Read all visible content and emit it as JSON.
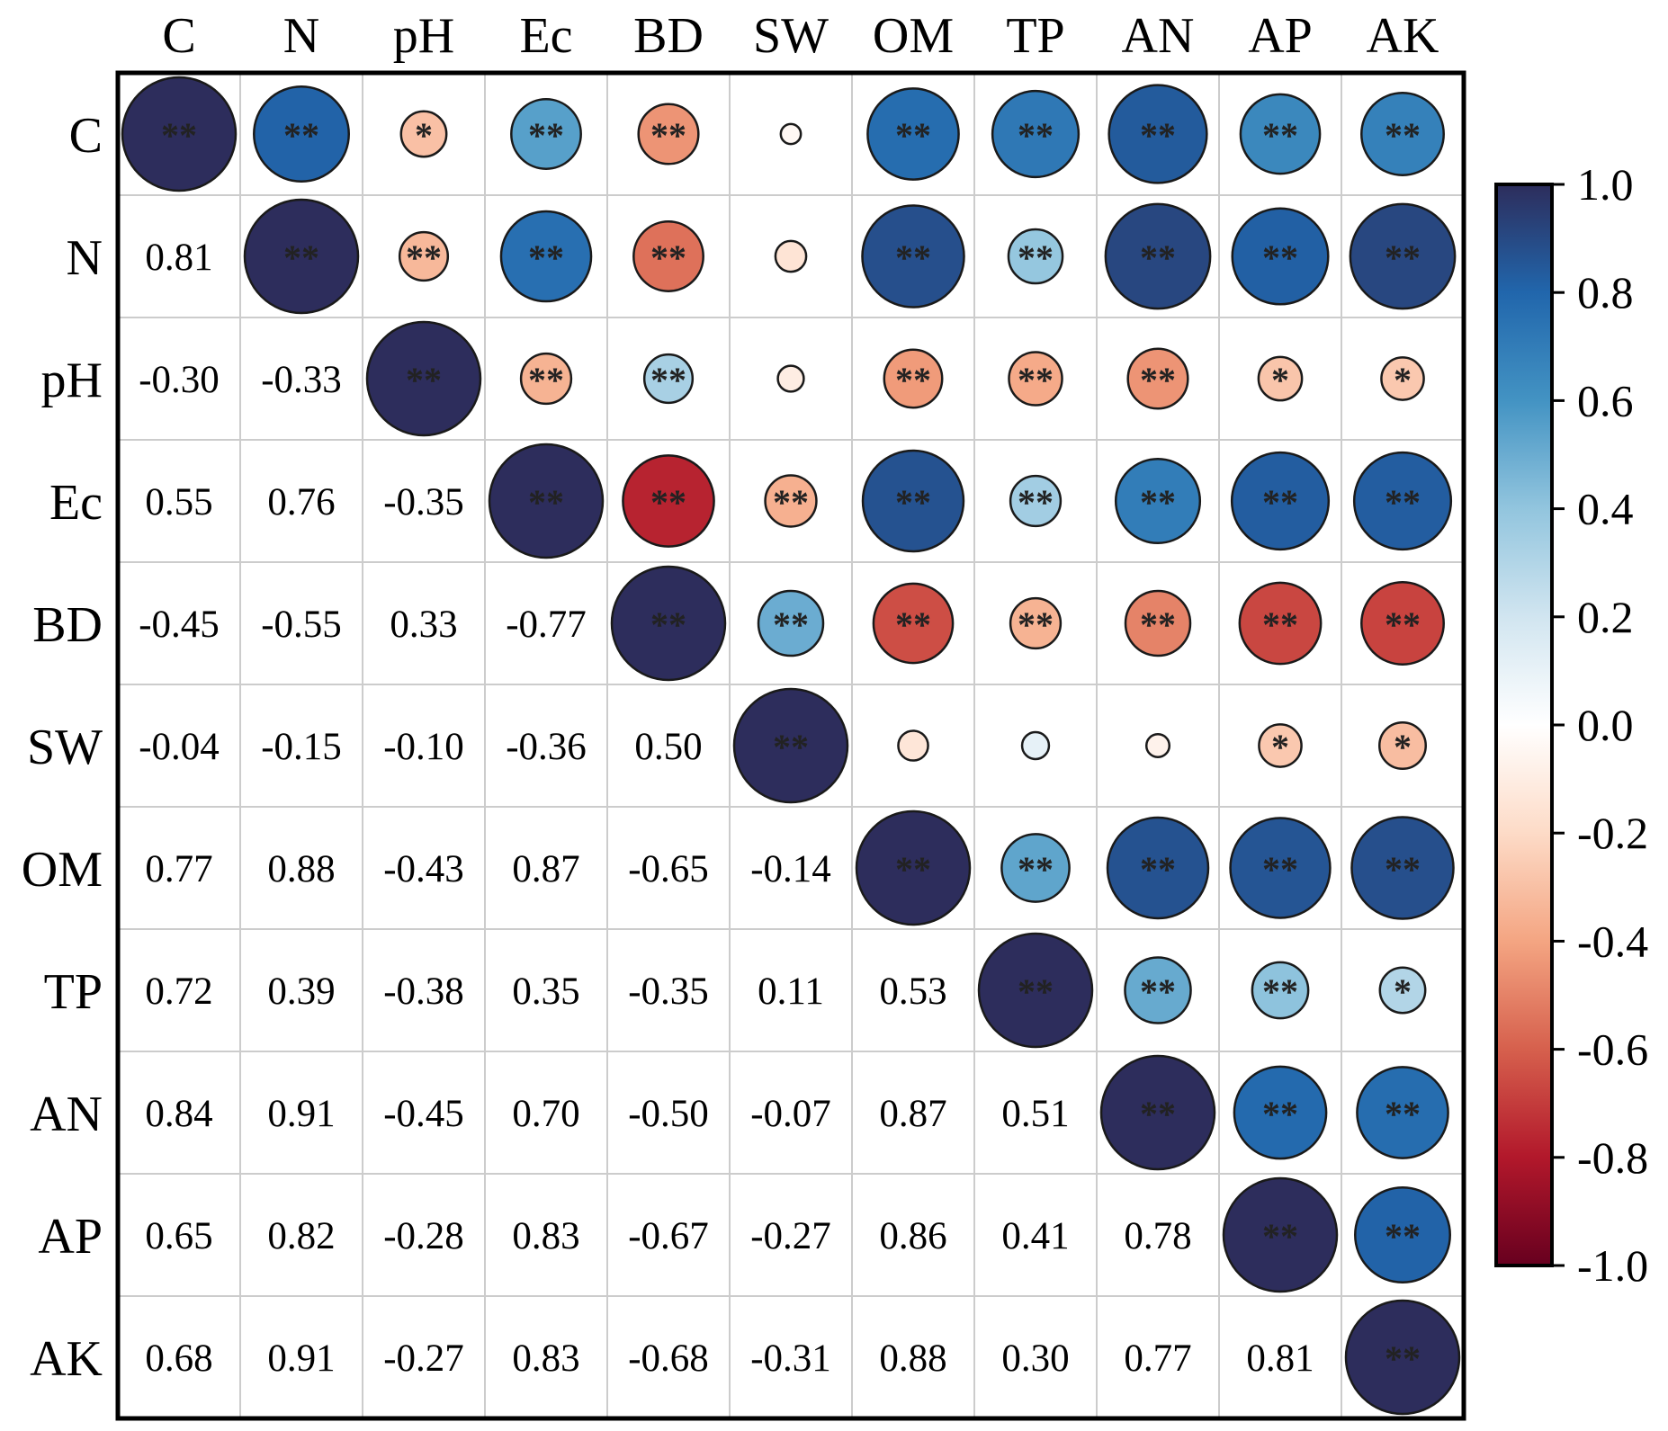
{
  "chart_data": {
    "type": "heatmap",
    "subtype": "correlation-matrix",
    "variables": [
      "C",
      "N",
      "pH",
      "Ec",
      "BD",
      "SW",
      "OM",
      "TP",
      "AN",
      "AP",
      "AK"
    ],
    "matrix": [
      [
        1.0,
        0.81,
        -0.3,
        0.55,
        -0.45,
        -0.04,
        0.77,
        0.72,
        0.84,
        0.65,
        0.68
      ],
      [
        0.81,
        1.0,
        -0.33,
        0.76,
        -0.55,
        -0.15,
        0.88,
        0.39,
        0.91,
        0.82,
        0.91
      ],
      [
        -0.3,
        -0.33,
        1.0,
        -0.35,
        0.33,
        -0.1,
        -0.43,
        -0.38,
        -0.45,
        -0.28,
        -0.27
      ],
      [
        0.55,
        0.76,
        -0.35,
        1.0,
        -0.77,
        -0.36,
        0.87,
        0.35,
        0.7,
        0.83,
        0.83
      ],
      [
        -0.45,
        -0.55,
        0.33,
        -0.77,
        1.0,
        0.5,
        -0.65,
        -0.35,
        -0.5,
        -0.67,
        -0.68
      ],
      [
        -0.04,
        -0.15,
        -0.1,
        -0.36,
        0.5,
        1.0,
        -0.14,
        0.11,
        -0.07,
        -0.27,
        -0.31
      ],
      [
        0.77,
        0.88,
        -0.43,
        0.87,
        -0.65,
        -0.14,
        1.0,
        0.53,
        0.87,
        0.86,
        0.88
      ],
      [
        0.72,
        0.39,
        -0.38,
        0.35,
        -0.35,
        0.11,
        0.53,
        1.0,
        0.51,
        0.41,
        0.3
      ],
      [
        0.84,
        0.91,
        -0.45,
        0.7,
        -0.5,
        -0.07,
        0.87,
        0.51,
        1.0,
        0.78,
        0.77
      ],
      [
        0.65,
        0.82,
        -0.28,
        0.83,
        -0.67,
        -0.27,
        0.86,
        0.41,
        0.78,
        1.0,
        0.81
      ],
      [
        0.68,
        0.91,
        -0.27,
        0.83,
        -0.68,
        -0.31,
        0.88,
        0.3,
        0.77,
        0.81,
        1.0
      ]
    ],
    "lower_triangle_text": [
      [
        "",
        "",
        "",
        "",
        "",
        "",
        "",
        "",
        "",
        "",
        ""
      ],
      [
        "0.81",
        "",
        "",
        "",
        "",
        "",
        "",
        "",
        "",
        "",
        ""
      ],
      [
        "-0.30",
        "-0.33",
        "",
        "",
        "",
        "",
        "",
        "",
        "",
        "",
        ""
      ],
      [
        "0.55",
        "0.76",
        "-0.35",
        "",
        "",
        "",
        "",
        "",
        "",
        "",
        ""
      ],
      [
        "-0.45",
        "-0.55",
        "0.33",
        "-0.77",
        "",
        "",
        "",
        "",
        "",
        "",
        ""
      ],
      [
        "-0.04",
        "-0.15",
        "-0.10",
        "-0.36",
        "0.50",
        "",
        "",
        "",
        "",
        "",
        ""
      ],
      [
        "0.77",
        "0.88",
        "-0.43",
        "0.87",
        "-0.65",
        "-0.14",
        "",
        "",
        "",
        "",
        ""
      ],
      [
        "0.72",
        "0.39",
        "-0.38",
        "0.35",
        "-0.35",
        "0.11",
        "0.53",
        "",
        "",
        "",
        ""
      ],
      [
        "0.84",
        "0.91",
        "-0.45",
        "0.70",
        "-0.50",
        "-0.07",
        "0.87",
        "0.51",
        "",
        "",
        ""
      ],
      [
        "0.65",
        "0.82",
        "-0.28",
        "0.83",
        "-0.67",
        "-0.27",
        "0.86",
        "0.41",
        "0.78",
        "",
        ""
      ],
      [
        "0.68",
        "0.91",
        "-0.27",
        "0.83",
        "-0.68",
        "-0.31",
        "0.88",
        "0.30",
        "0.77",
        "0.81",
        ""
      ]
    ],
    "significance": [
      [
        "**",
        "**",
        "*",
        "**",
        "**",
        "",
        "**",
        "**",
        "**",
        "**",
        "**"
      ],
      [
        "",
        "**",
        "**",
        "**",
        "**",
        "",
        "**",
        "**",
        "**",
        "**",
        "**"
      ],
      [
        "",
        "",
        "**",
        "**",
        "**",
        "",
        "**",
        "**",
        "**",
        "*",
        "*"
      ],
      [
        "",
        "",
        "",
        "**",
        "**",
        "**",
        "**",
        "**",
        "**",
        "**",
        "**"
      ],
      [
        "",
        "",
        "",
        "",
        "**",
        "**",
        "**",
        "**",
        "**",
        "**",
        "**"
      ],
      [
        "",
        "",
        "",
        "",
        "",
        "**",
        "",
        "",
        "",
        "*",
        "*"
      ],
      [
        "",
        "",
        "",
        "",
        "",
        "",
        "**",
        "**",
        "**",
        "**",
        "**"
      ],
      [
        "",
        "",
        "",
        "",
        "",
        "",
        "",
        "**",
        "**",
        "**",
        "*"
      ],
      [
        "",
        "",
        "",
        "",
        "",
        "",
        "",
        "",
        "**",
        "**",
        "**"
      ],
      [
        "",
        "",
        "",
        "",
        "",
        "",
        "",
        "",
        "",
        "**",
        "**"
      ],
      [
        "",
        "",
        "",
        "",
        "",
        "",
        "",
        "",
        "",
        "",
        "**"
      ]
    ],
    "colorbar": {
      "range": [
        -1.0,
        1.0
      ],
      "ticks": [
        "1.0",
        "0.8",
        "0.6",
        "0.4",
        "0.2",
        "0.0",
        "-0.2",
        "-0.4",
        "-0.6",
        "-0.8",
        "-1.0"
      ],
      "colormap": "RdBu",
      "stops": [
        "#67001f",
        "#b2182b",
        "#d6604d",
        "#f4a582",
        "#fddbc7",
        "#ffffff",
        "#d1e5f0",
        "#92c5de",
        "#4393c3",
        "#2166ac",
        "#2d2d5c"
      ]
    },
    "upper_triangle_glyph": "circle sized and colored by correlation",
    "grid_color": "#cccccc",
    "frame_color": "#000000"
  }
}
